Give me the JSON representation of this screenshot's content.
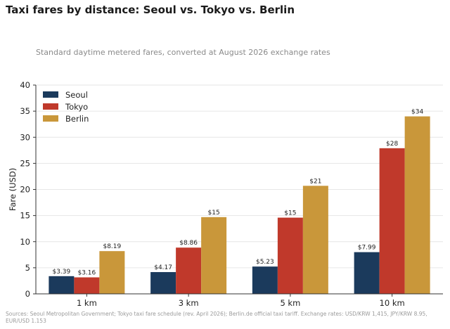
{
  "title": "Taxi fares by distance: Seoul vs. Tokyo vs. Berlin",
  "subtitle": "Standard daytime metered fares, converted at August 2026 exchange rates",
  "source": "Sources: Seoul Metropolitan Government; Tokyo taxi fare schedule (rev. April 2026); Berlin.de official taxi tariff. Exchange rates: USD/KRW 1,415, JPY/KRW 8.95, EUR/USD 1.153",
  "colors": {
    "Seoul": "#1b3a5c",
    "Tokyo": "#c0392b",
    "Berlin": "#c9973a"
  },
  "chart_data": {
    "type": "bar",
    "categories": [
      "1 km",
      "3 km",
      "5 km",
      "10 km"
    ],
    "series": [
      {
        "name": "Seoul",
        "values": [
          3.39,
          4.17,
          5.23,
          7.99
        ],
        "labels": [
          "$3.39",
          "$4.17",
          "$5.23",
          "$7.99"
        ]
      },
      {
        "name": "Tokyo",
        "values": [
          3.16,
          8.86,
          14.6,
          27.9
        ],
        "labels": [
          "$3.16",
          "$8.86",
          "$15",
          "$28"
        ]
      },
      {
        "name": "Berlin",
        "values": [
          8.19,
          14.7,
          20.7,
          34.0
        ],
        "labels": [
          "$8.19",
          "$15",
          "$21",
          "$34"
        ]
      }
    ],
    "xlabel": "",
    "ylabel": "Fare (USD)",
    "ylim": [
      0,
      40
    ],
    "yticks": [
      0,
      5,
      10,
      15,
      20,
      25,
      30,
      35,
      40
    ],
    "grid": true,
    "legend": "top-left"
  }
}
